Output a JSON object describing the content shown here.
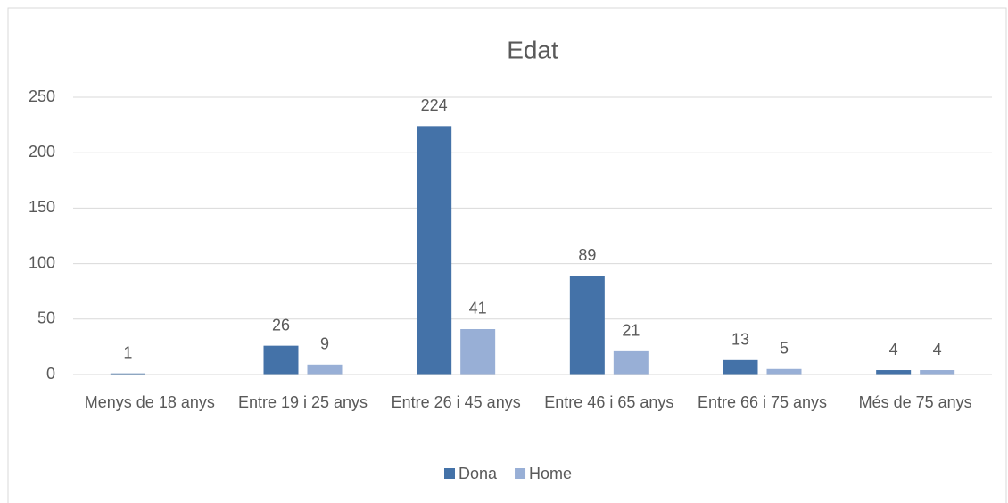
{
  "chart_data": {
    "type": "bar",
    "title": "Edat",
    "categories": [
      "Menys de 18 anys",
      "Entre 19 i 25 anys",
      "Entre 26 i 45 anys",
      "Entre 46 i 65 anys",
      "Entre 66 i 75 anys",
      "Més de 75 anys"
    ],
    "series": [
      {
        "name": "Dona",
        "color": "#4472a8",
        "values": [
          1,
          26,
          224,
          89,
          13,
          4
        ]
      },
      {
        "name": "Home",
        "color": "#98afd6",
        "values": [
          null,
          9,
          41,
          21,
          5,
          4
        ]
      }
    ],
    "ylim": [
      0,
      250
    ],
    "yticks": [
      0,
      50,
      100,
      150,
      200,
      250
    ],
    "grid": true,
    "legend": "bottom"
  }
}
